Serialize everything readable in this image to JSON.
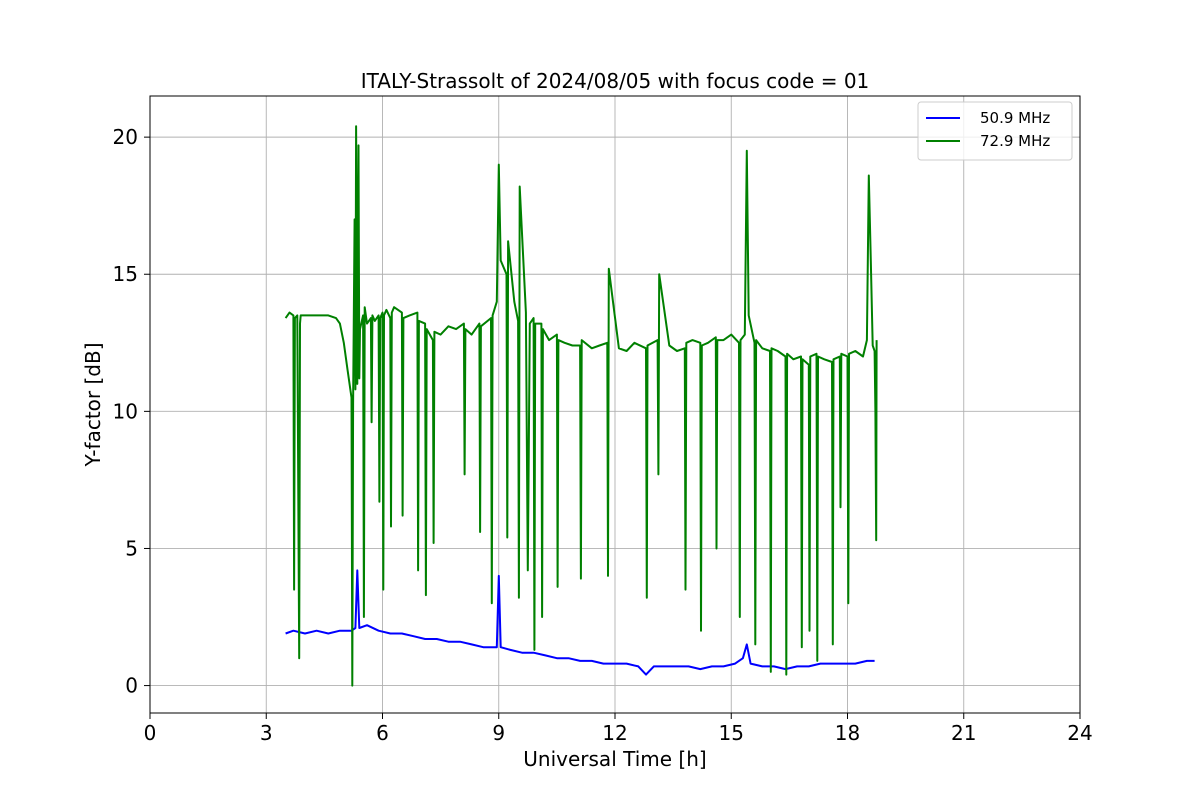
{
  "chart_data": {
    "type": "line",
    "title": "ITALY-Strassolt of 2024/08/05 with focus code = 01",
    "xlabel": "Universal Time [h]",
    "ylabel": "Y-factor [dB]",
    "xlim": [
      0,
      24
    ],
    "ylim": [
      -1,
      21.5
    ],
    "xticks": [
      0,
      3,
      6,
      9,
      12,
      15,
      18,
      21,
      24
    ],
    "xtick_labels": [
      "0",
      "3",
      "6",
      "9",
      "12",
      "15",
      "18",
      "21",
      "24"
    ],
    "yticks": [
      0,
      5,
      10,
      15,
      20
    ],
    "ytick_labels": [
      "0",
      "5",
      "10",
      "15",
      "20"
    ],
    "grid": true,
    "legend_position": "top-right",
    "series": [
      {
        "name": "50.9 MHz",
        "color": "#0000ff",
        "x": [
          3.5,
          3.7,
          4.0,
          4.3,
          4.6,
          4.9,
          5.2,
          5.3,
          5.35,
          5.4,
          5.6,
          5.9,
          6.2,
          6.5,
          6.8,
          7.1,
          7.4,
          7.7,
          8.0,
          8.3,
          8.6,
          8.95,
          9.0,
          9.05,
          9.3,
          9.6,
          9.9,
          10.2,
          10.5,
          10.8,
          11.1,
          11.4,
          11.7,
          12.0,
          12.3,
          12.6,
          12.8,
          13.0,
          13.3,
          13.6,
          13.9,
          14.2,
          14.5,
          14.8,
          15.1,
          15.3,
          15.4,
          15.5,
          15.8,
          16.1,
          16.4,
          16.7,
          17.0,
          17.3,
          17.6,
          17.9,
          18.2,
          18.5,
          18.7
        ],
        "y": [
          1.9,
          2.0,
          1.9,
          2.0,
          1.9,
          2.0,
          2.0,
          2.1,
          4.2,
          2.1,
          2.2,
          2.0,
          1.9,
          1.9,
          1.8,
          1.7,
          1.7,
          1.6,
          1.6,
          1.5,
          1.4,
          1.4,
          4.0,
          1.4,
          1.3,
          1.2,
          1.2,
          1.1,
          1.0,
          1.0,
          0.9,
          0.9,
          0.8,
          0.8,
          0.8,
          0.7,
          0.4,
          0.7,
          0.7,
          0.7,
          0.7,
          0.6,
          0.7,
          0.7,
          0.8,
          1.0,
          1.5,
          0.8,
          0.7,
          0.7,
          0.6,
          0.7,
          0.7,
          0.8,
          0.8,
          0.8,
          0.8,
          0.9,
          0.9
        ]
      },
      {
        "name": "72.9 MHz",
        "color": "#008000",
        "x": [
          3.5,
          3.6,
          3.7,
          3.72,
          3.74,
          3.8,
          3.85,
          3.87,
          3.89,
          4.0,
          4.3,
          4.6,
          4.8,
          4.9,
          5.0,
          5.1,
          5.2,
          5.22,
          5.24,
          5.28,
          5.3,
          5.32,
          5.35,
          5.38,
          5.4,
          5.42,
          5.5,
          5.52,
          5.54,
          5.6,
          5.7,
          5.72,
          5.74,
          5.8,
          5.9,
          5.92,
          5.94,
          6.0,
          6.02,
          6.04,
          6.1,
          6.2,
          6.22,
          6.24,
          6.3,
          6.5,
          6.52,
          6.54,
          6.7,
          6.9,
          6.92,
          6.94,
          7.1,
          7.12,
          7.14,
          7.3,
          7.32,
          7.34,
          7.5,
          7.7,
          7.9,
          8.1,
          8.12,
          8.14,
          8.3,
          8.5,
          8.52,
          8.54,
          8.8,
          8.82,
          8.84,
          8.95,
          9.0,
          9.05,
          9.2,
          9.22,
          9.24,
          9.4,
          9.5,
          9.52,
          9.54,
          9.7,
          9.75,
          9.8,
          9.9,
          9.92,
          9.94,
          10.1,
          10.12,
          10.14,
          10.3,
          10.5,
          10.52,
          10.54,
          10.7,
          10.9,
          11.1,
          11.12,
          11.14,
          11.4,
          11.6,
          11.8,
          11.82,
          11.84,
          12.1,
          12.3,
          12.5,
          12.8,
          12.82,
          12.84,
          13.1,
          13.12,
          13.14,
          13.4,
          13.6,
          13.8,
          13.82,
          13.84,
          14.0,
          14.2,
          14.22,
          14.24,
          14.4,
          14.6,
          14.62,
          14.64,
          14.8,
          15.0,
          15.2,
          15.22,
          15.24,
          15.35,
          15.4,
          15.45,
          15.6,
          15.62,
          15.64,
          15.8,
          16.0,
          16.02,
          16.04,
          16.2,
          16.4,
          16.42,
          16.44,
          16.6,
          16.8,
          16.82,
          16.84,
          17.0,
          17.02,
          17.04,
          17.2,
          17.22,
          17.24,
          17.4,
          17.6,
          17.62,
          17.64,
          17.8,
          17.82,
          17.84,
          18.0,
          18.02,
          18.04,
          18.2,
          18.4,
          18.5,
          18.55,
          18.6,
          18.65,
          18.7,
          18.72,
          18.74,
          18.75
        ],
        "y": [
          13.4,
          13.6,
          13.5,
          3.5,
          13.4,
          13.5,
          1.0,
          13.2,
          13.5,
          13.5,
          13.5,
          13.5,
          13.4,
          13.2,
          12.5,
          11.5,
          10.5,
          0.0,
          10.3,
          17.0,
          10.8,
          20.4,
          11.0,
          19.7,
          11.2,
          13.0,
          13.5,
          2.5,
          13.8,
          13.2,
          13.4,
          9.6,
          13.5,
          13.3,
          13.5,
          6.7,
          13.4,
          13.6,
          3.5,
          13.5,
          13.7,
          13.4,
          5.8,
          13.6,
          13.8,
          13.6,
          6.2,
          13.4,
          13.5,
          13.6,
          4.2,
          13.3,
          13.2,
          3.3,
          13.0,
          12.6,
          5.2,
          12.9,
          12.8,
          13.1,
          13.0,
          13.2,
          7.7,
          13.0,
          12.8,
          13.2,
          5.6,
          13.1,
          13.4,
          3.0,
          13.5,
          14.0,
          19.0,
          15.5,
          15.0,
          5.4,
          16.2,
          14.0,
          13.3,
          3.2,
          18.2,
          13.6,
          4.2,
          13.2,
          13.4,
          1.3,
          13.2,
          13.2,
          2.5,
          13.0,
          12.6,
          12.8,
          3.6,
          12.6,
          12.5,
          12.4,
          12.4,
          3.9,
          12.6,
          12.3,
          12.4,
          12.5,
          4.0,
          15.2,
          12.3,
          12.2,
          12.5,
          12.3,
          3.2,
          12.4,
          12.6,
          7.7,
          15.0,
          12.4,
          12.2,
          12.3,
          3.5,
          12.5,
          12.6,
          12.5,
          2.0,
          12.4,
          12.5,
          12.7,
          5.0,
          12.6,
          12.6,
          12.8,
          12.5,
          2.5,
          12.6,
          12.8,
          19.5,
          13.5,
          12.5,
          1.5,
          12.6,
          12.3,
          12.2,
          0.5,
          12.3,
          12.2,
          12.0,
          0.4,
          12.1,
          11.9,
          12.0,
          1.4,
          11.9,
          11.7,
          2.0,
          12.0,
          12.1,
          0.9,
          12.0,
          11.9,
          11.8,
          1.5,
          11.9,
          12.0,
          6.5,
          12.1,
          12.0,
          3.0,
          12.1,
          12.2,
          12.0,
          12.6,
          18.6,
          15.5,
          12.4,
          12.2,
          10.0,
          5.3,
          12.6
        ]
      }
    ]
  }
}
